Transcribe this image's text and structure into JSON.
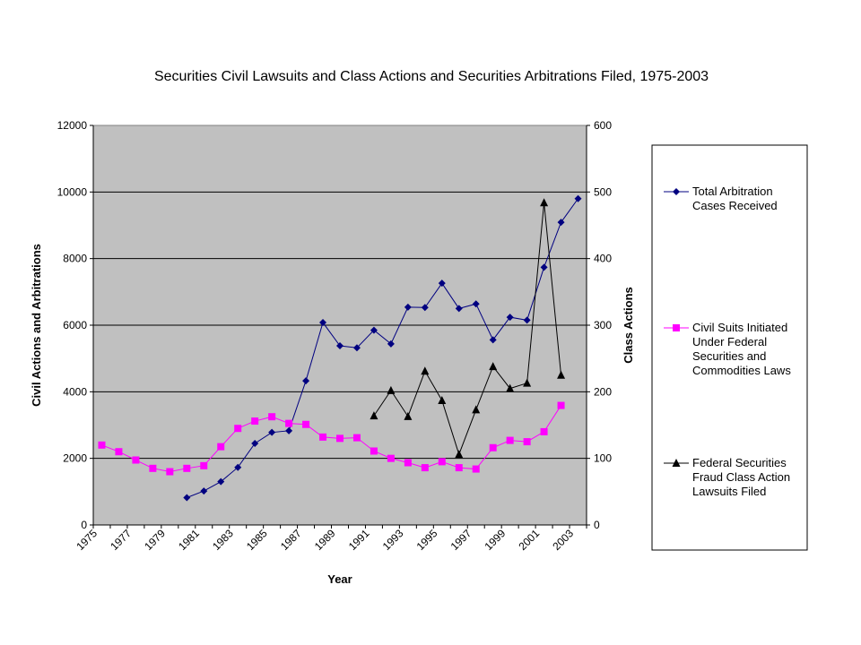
{
  "chart_data": {
    "type": "line",
    "title": "Securities Civil Lawsuits and Class Actions and Securities Arbitrations Filed, 1975-2003",
    "xlabel": "Year",
    "ylabel": "Civil Actions and Arbitrations",
    "y2label": "Class Actions",
    "x": [
      1975,
      1976,
      1977,
      1978,
      1979,
      1980,
      1981,
      1982,
      1983,
      1984,
      1985,
      1986,
      1987,
      1988,
      1989,
      1990,
      1991,
      1992,
      1993,
      1994,
      1995,
      1996,
      1997,
      1998,
      1999,
      2000,
      2001,
      2002,
      2003
    ],
    "x_tick_labels": [
      "1975",
      "1977",
      "1979",
      "1981",
      "1983",
      "1985",
      "1987",
      "1989",
      "1991",
      "1993",
      "1995",
      "1997",
      "1999",
      "2001",
      "2003"
    ],
    "ylim": [
      0,
      12000
    ],
    "y2lim": [
      0,
      600
    ],
    "y_ticks": [
      "0",
      "2000",
      "4000",
      "6000",
      "8000",
      "10000",
      "12000"
    ],
    "y2_ticks": [
      "0",
      "100",
      "200",
      "300",
      "400",
      "500",
      "600"
    ],
    "plot_background": "#c0c0c0",
    "grid": true,
    "legend_position": "right",
    "series": [
      {
        "name": "Total Arbitration Cases Received",
        "axis": "left",
        "color": "#000080",
        "marker": "diamond",
        "values": [
          null,
          null,
          null,
          null,
          null,
          820,
          1020,
          1300,
          1730,
          2450,
          2780,
          2830,
          4330,
          6080,
          5380,
          5320,
          5850,
          5440,
          6540,
          6530,
          7260,
          6500,
          6640,
          5560,
          6240,
          6150,
          7740,
          9090,
          9800
        ]
      },
      {
        "name": "Civil Suits Initiated Under Federal Securities and Commodities Laws",
        "axis": "left",
        "color": "#ff00ff",
        "marker": "square",
        "values": [
          2400,
          2200,
          1950,
          1700,
          1600,
          1700,
          1780,
          2350,
          2900,
          3120,
          3250,
          3050,
          3020,
          2640,
          2600,
          2620,
          2220,
          2000,
          1870,
          1720,
          1900,
          1720,
          1680,
          2320,
          2540,
          2500,
          2800,
          3590,
          null
        ]
      },
      {
        "name": "Federal Securities Fraud Class Action Lawsuits Filed",
        "axis": "right",
        "color": "#000000",
        "marker": "triangle",
        "values": [
          null,
          null,
          null,
          null,
          null,
          null,
          null,
          null,
          null,
          null,
          null,
          null,
          null,
          null,
          null,
          null,
          164,
          202,
          163,
          231,
          187,
          106,
          173,
          238,
          205,
          213,
          484,
          225,
          null
        ]
      }
    ]
  }
}
